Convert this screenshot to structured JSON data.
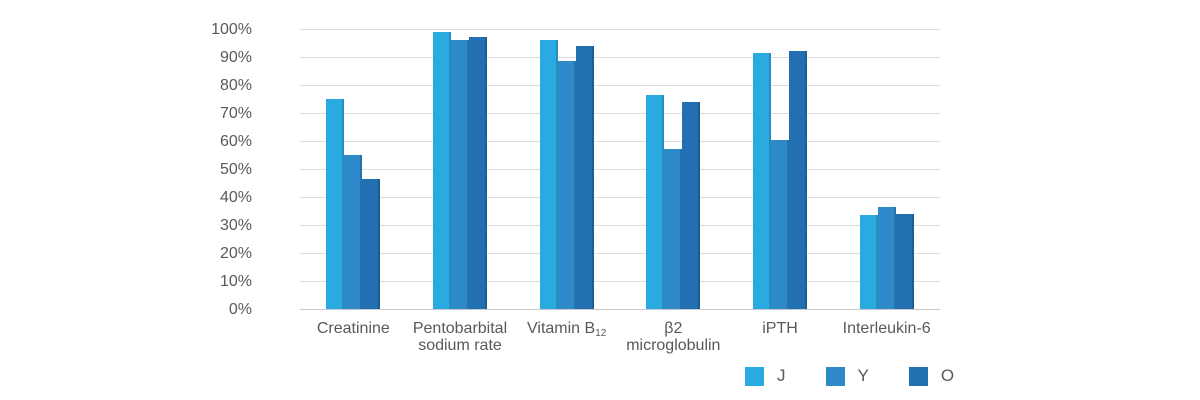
{
  "colors": {
    "background": "#ffffff",
    "gridline": "#dcdcdc",
    "axis_line": "#c9c9c9",
    "text": "#58595b"
  },
  "chart_data": {
    "type": "bar",
    "title": "",
    "xlabel": "",
    "ylabel": "",
    "grid": "horizontal",
    "legend_position": "bottom-right",
    "y_axis": {
      "min": 0,
      "max": 100,
      "step": 10,
      "tick_labels": [
        "0%",
        "10%",
        "20%",
        "30%",
        "40%",
        "50%",
        "60%",
        "70%",
        "80%",
        "90%",
        "100%"
      ]
    },
    "categories": [
      {
        "id": "creatinine",
        "lines": [
          {
            "text": "Creatinine"
          }
        ]
      },
      {
        "id": "pentobarbital-sodium-rate",
        "lines": [
          {
            "text": "Pentobarbital"
          },
          {
            "text": "sodium rate"
          }
        ]
      },
      {
        "id": "vitamin-b12",
        "lines": [
          {
            "text": "Vitamin B",
            "sub": "12"
          }
        ]
      },
      {
        "id": "beta2-microglobulin",
        "lines": [
          {
            "text": "β2"
          },
          {
            "text": "microglobulin"
          }
        ]
      },
      {
        "id": "ipth",
        "lines": [
          {
            "text": "iPTH"
          }
        ]
      },
      {
        "id": "interleukin-6",
        "lines": [
          {
            "text": "Interleukin-6"
          }
        ]
      }
    ],
    "series": [
      {
        "name": "J",
        "color": "#29abe2",
        "values": [
          75,
          99,
          96,
          76.5,
          91.5,
          33.5
        ]
      },
      {
        "name": "Y",
        "color": "#2d89c9",
        "values": [
          55,
          96,
          88.5,
          57,
          60.5,
          36.5
        ]
      },
      {
        "name": "O",
        "color": "#2270b1",
        "values": [
          46.5,
          97,
          94,
          74,
          92,
          34
        ]
      }
    ]
  }
}
